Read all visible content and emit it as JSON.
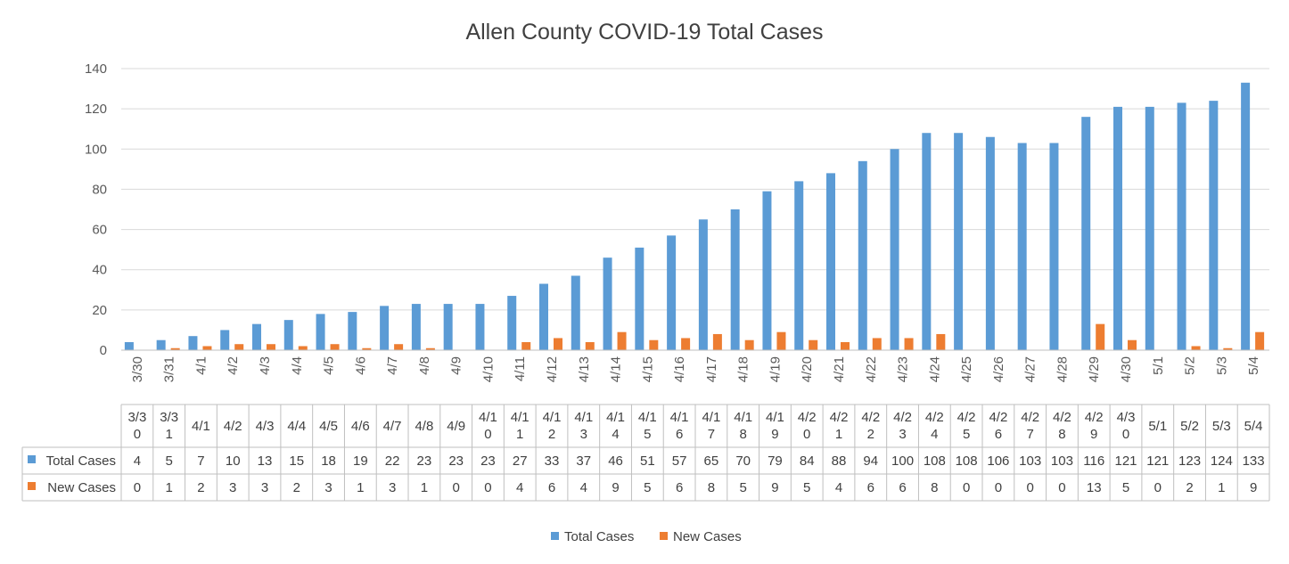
{
  "chart_data": {
    "type": "bar",
    "title": "Allen County COVID-19 Total Cases",
    "xlabel": "",
    "ylabel": "",
    "ylim": [
      0,
      140
    ],
    "yticks": [
      0,
      20,
      40,
      60,
      80,
      100,
      120,
      140
    ],
    "grid": true,
    "legend_position": "bottom",
    "categories": [
      "3/30",
      "3/31",
      "4/1",
      "4/2",
      "4/3",
      "4/4",
      "4/5",
      "4/6",
      "4/7",
      "4/8",
      "4/9",
      "4/10",
      "4/11",
      "4/12",
      "4/13",
      "4/14",
      "4/15",
      "4/16",
      "4/17",
      "4/18",
      "4/19",
      "4/20",
      "4/21",
      "4/22",
      "4/23",
      "4/24",
      "4/25",
      "4/26",
      "4/27",
      "4/28",
      "4/29",
      "4/30",
      "5/1",
      "5/2",
      "5/3",
      "5/4"
    ],
    "series": [
      {
        "name": "Total Cases",
        "color": "#5b9bd5",
        "values": [
          4,
          5,
          7,
          10,
          13,
          15,
          18,
          19,
          22,
          23,
          23,
          23,
          27,
          33,
          37,
          46,
          51,
          57,
          65,
          70,
          79,
          84,
          88,
          94,
          100,
          108,
          108,
          106,
          103,
          103,
          116,
          121,
          121,
          123,
          124,
          133
        ]
      },
      {
        "name": "New Cases",
        "color": "#ed7d31",
        "values": [
          0,
          1,
          2,
          3,
          3,
          2,
          3,
          1,
          3,
          1,
          0,
          0,
          4,
          6,
          4,
          9,
          5,
          6,
          8,
          5,
          9,
          5,
          4,
          6,
          6,
          8,
          0,
          0,
          0,
          0,
          13,
          5,
          0,
          2,
          1,
          9
        ]
      }
    ],
    "data_table": true
  }
}
